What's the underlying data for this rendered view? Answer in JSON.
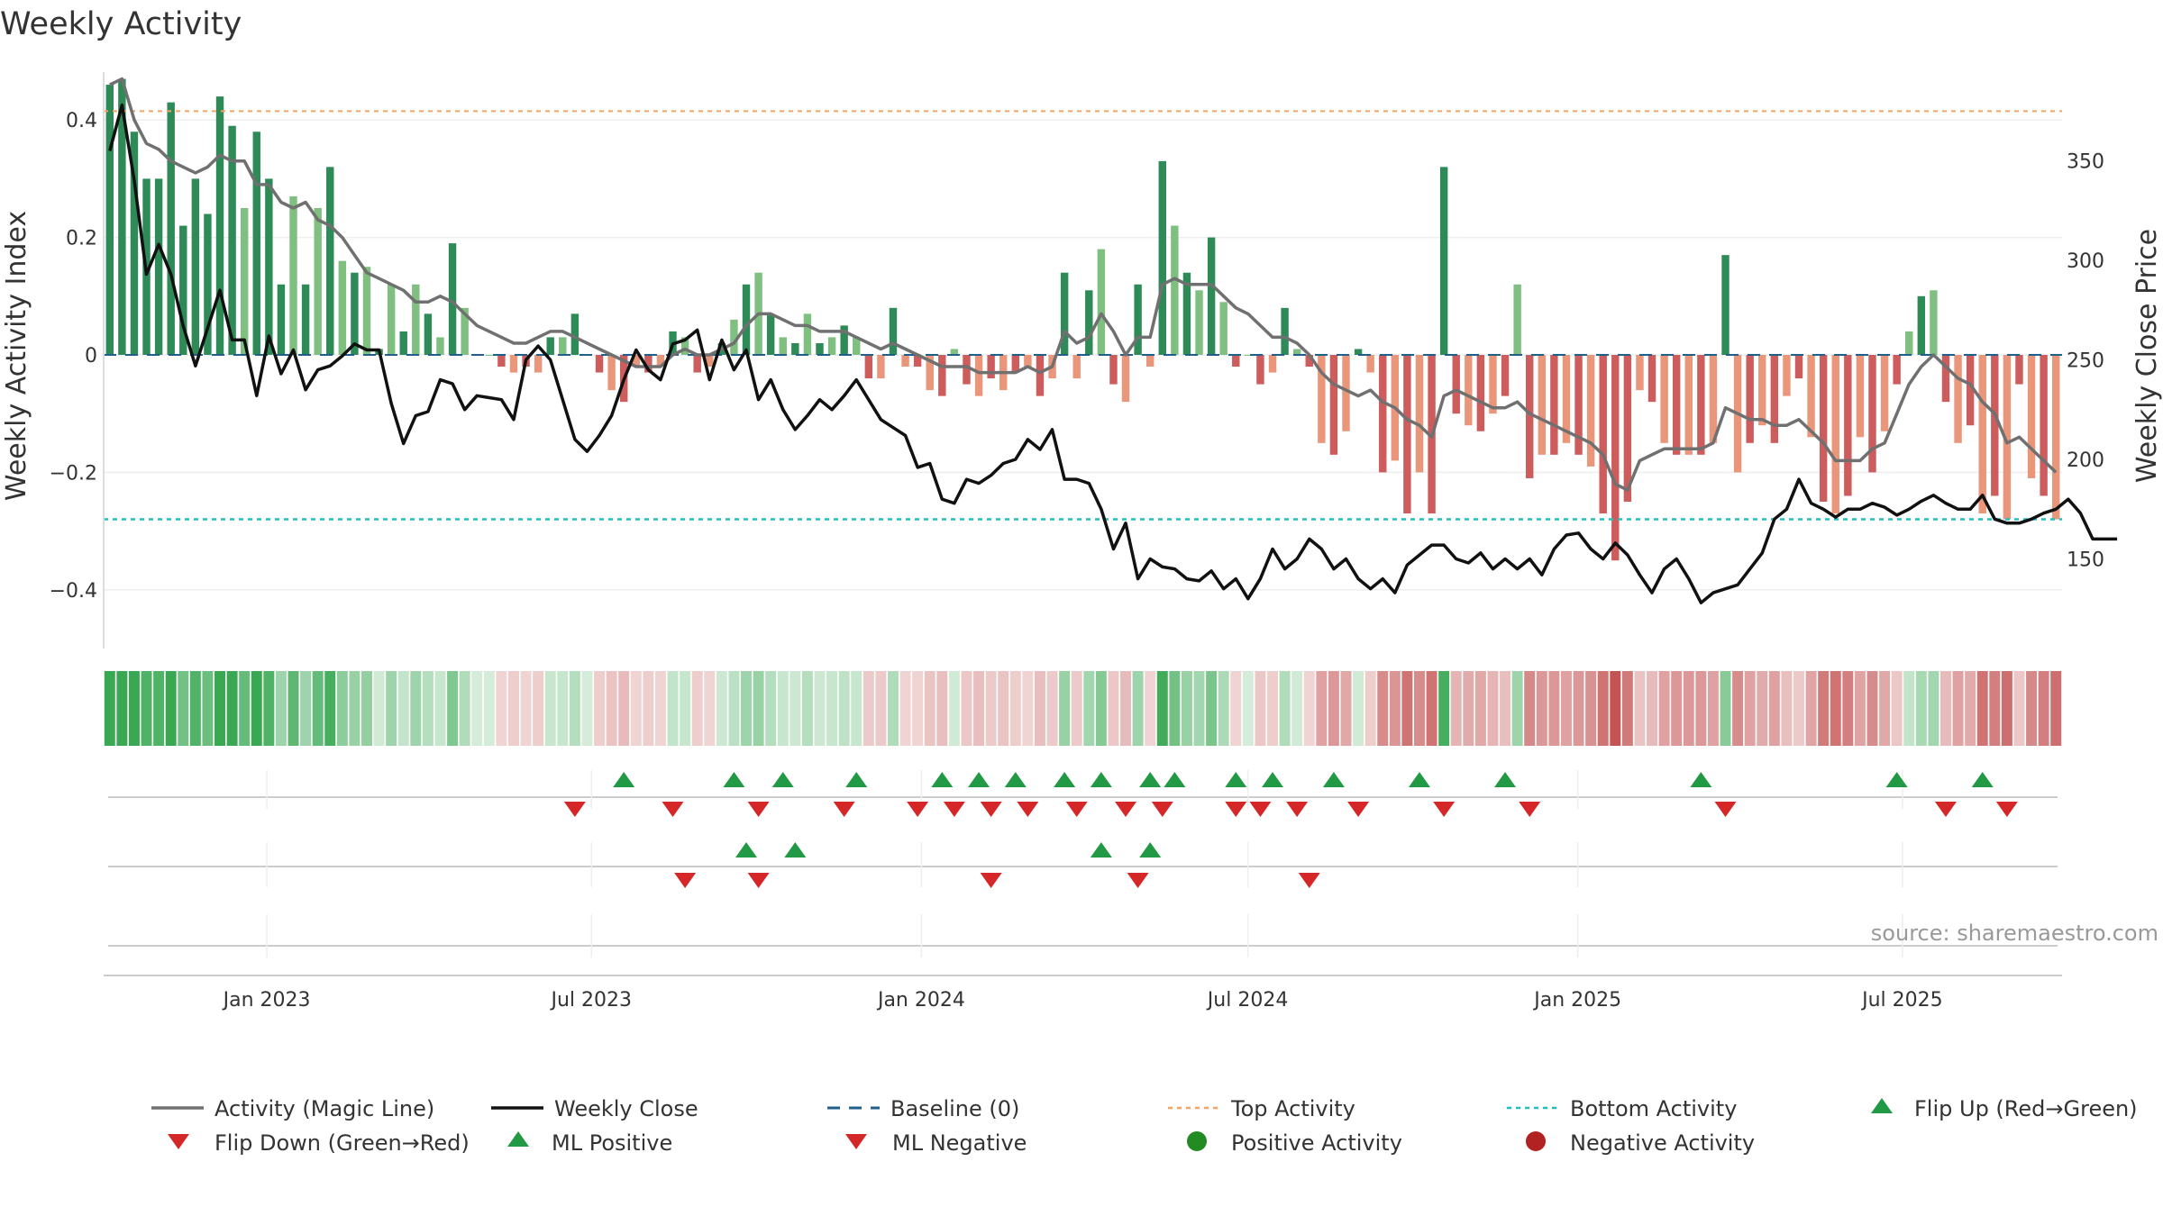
{
  "chart_data": {
    "type": "bar+line",
    "title": "Weekly Activity",
    "ylabel_left": "Weekly Activity Index",
    "ylabel_right": "Weekly Close Price",
    "ylim_left": [
      -0.5,
      0.5
    ],
    "ylim_right": [
      105,
      400
    ],
    "yticks_left": [
      0.4,
      0.2,
      0,
      -0.2,
      -0.4
    ],
    "ytick_labels_left": [
      "0.4",
      "0.2",
      "0",
      "−0.2",
      "−0.4"
    ],
    "yticks_right": [
      350,
      300,
      250,
      200,
      150
    ],
    "ytick_labels_right": [
      "350",
      "300",
      "250",
      "200",
      "150"
    ],
    "top_activity": 0.415,
    "bottom_activity": -0.28,
    "x_start": "2022-10-02",
    "x_end": "2025-09-28",
    "xticks": [
      "2023-01-01",
      "2023-07-01",
      "2024-01-01",
      "2024-07-01",
      "2025-01-01",
      "2025-07-01"
    ],
    "xtick_labels": [
      "Jan 2023",
      "Jul 2023",
      "Jan 2024",
      "Jul 2024",
      "Jan 2025",
      "Jul 2025"
    ],
    "source": "source: sharemaestro.com",
    "activity": [
      0.46,
      0.47,
      0.38,
      0.3,
      0.3,
      0.43,
      0.22,
      0.3,
      0.24,
      0.44,
      0.39,
      0.25,
      0.38,
      0.3,
      0.12,
      0.27,
      0.12,
      0.25,
      0.32,
      0.16,
      0.14,
      0.15,
      0.01,
      0.12,
      0.04,
      0.12,
      0.07,
      0.03,
      0.19,
      0.08,
      0.0,
      0.0,
      -0.02,
      -0.03,
      -0.02,
      -0.03,
      0.03,
      0.03,
      0.07,
      0.0,
      -0.03,
      -0.06,
      -0.08,
      -0.02,
      -0.03,
      -0.02,
      0.04,
      0.03,
      -0.03,
      -0.02,
      0.02,
      0.06,
      0.12,
      0.14,
      0.07,
      0.03,
      0.02,
      0.07,
      0.02,
      0.03,
      0.05,
      0.03,
      -0.04,
      -0.04,
      0.08,
      -0.02,
      -0.02,
      -0.06,
      -0.07,
      0.01,
      -0.05,
      -0.07,
      -0.04,
      -0.06,
      -0.03,
      -0.02,
      -0.07,
      -0.04,
      0.14,
      -0.04,
      0.11,
      0.18,
      -0.05,
      -0.08,
      0.12,
      -0.02,
      0.33,
      0.22,
      0.14,
      0.11,
      0.2,
      0.09,
      -0.02,
      0.0,
      -0.05,
      -0.03,
      0.08,
      0.01,
      -0.02,
      -0.15,
      -0.17,
      -0.13,
      0.01,
      -0.03,
      -0.2,
      -0.18,
      -0.27,
      -0.2,
      -0.27,
      0.32,
      -0.1,
      -0.12,
      -0.13,
      -0.1,
      -0.07,
      0.12,
      -0.21,
      -0.17,
      -0.17,
      -0.15,
      -0.17,
      -0.19,
      -0.27,
      -0.35,
      -0.25,
      -0.06,
      -0.08,
      -0.15,
      -0.17,
      -0.17,
      -0.17,
      -0.15,
      0.17,
      -0.2,
      -0.15,
      -0.12,
      -0.15,
      -0.07,
      -0.04,
      -0.14,
      -0.25,
      -0.27,
      -0.24,
      -0.14,
      -0.2,
      -0.13,
      -0.05,
      0.04,
      0.1,
      0.11,
      -0.08,
      -0.15,
      -0.12,
      -0.27,
      -0.24,
      -0.28,
      -0.05,
      -0.21,
      -0.24,
      -0.28
    ],
    "magic_line": [
      0.46,
      0.47,
      0.4,
      0.36,
      0.35,
      0.33,
      0.32,
      0.31,
      0.32,
      0.34,
      0.33,
      0.33,
      0.29,
      0.29,
      0.26,
      0.25,
      0.26,
      0.23,
      0.22,
      0.2,
      0.17,
      0.14,
      0.13,
      0.12,
      0.11,
      0.09,
      0.09,
      0.1,
      0.09,
      0.07,
      0.05,
      0.04,
      0.03,
      0.02,
      0.02,
      0.03,
      0.04,
      0.04,
      0.03,
      0.02,
      0.01,
      0.0,
      -0.01,
      -0.02,
      -0.02,
      -0.02,
      0.0,
      0.01,
      0.0,
      0.0,
      0.01,
      0.02,
      0.05,
      0.07,
      0.07,
      0.06,
      0.05,
      0.05,
      0.04,
      0.04,
      0.04,
      0.03,
      0.02,
      0.01,
      0.02,
      0.01,
      0.0,
      -0.01,
      -0.02,
      -0.02,
      -0.02,
      -0.03,
      -0.03,
      -0.03,
      -0.03,
      -0.02,
      -0.03,
      -0.02,
      0.04,
      0.02,
      0.03,
      0.07,
      0.04,
      0.0,
      0.03,
      0.03,
      0.12,
      0.13,
      0.12,
      0.12,
      0.12,
      0.1,
      0.08,
      0.07,
      0.05,
      0.03,
      0.03,
      0.02,
      0.0,
      -0.03,
      -0.05,
      -0.06,
      -0.07,
      -0.06,
      -0.08,
      -0.09,
      -0.11,
      -0.12,
      -0.14,
      -0.07,
      -0.06,
      -0.07,
      -0.08,
      -0.09,
      -0.09,
      -0.08,
      -0.1,
      -0.11,
      -0.12,
      -0.13,
      -0.14,
      -0.15,
      -0.17,
      -0.22,
      -0.23,
      -0.18,
      -0.17,
      -0.16,
      -0.16,
      -0.16,
      -0.16,
      -0.15,
      -0.09,
      -0.1,
      -0.11,
      -0.11,
      -0.12,
      -0.12,
      -0.11,
      -0.13,
      -0.15,
      -0.18,
      -0.18,
      -0.18,
      -0.16,
      -0.15,
      -0.1,
      -0.05,
      -0.02,
      0.0,
      -0.02,
      -0.04,
      -0.05,
      -0.08,
      -0.1,
      -0.15,
      -0.14,
      -0.16,
      -0.18,
      -0.2
    ],
    "weekly_close": [
      355,
      378,
      340,
      293,
      308,
      293,
      267,
      247,
      266,
      285,
      260,
      260,
      232,
      262,
      243,
      255,
      235,
      245,
      247,
      252,
      258,
      255,
      255,
      228,
      208,
      222,
      224,
      240,
      238,
      225,
      232,
      231,
      230,
      220,
      250,
      257,
      250,
      230,
      210,
      204,
      212,
      222,
      240,
      255,
      245,
      240,
      258,
      260,
      265,
      240,
      260,
      245,
      255,
      230,
      240,
      225,
      215,
      222,
      230,
      225,
      232,
      240,
      230,
      220,
      216,
      212,
      196,
      198,
      180,
      178,
      190,
      188,
      192,
      198,
      200,
      210,
      205,
      215,
      190,
      190,
      188,
      175,
      155,
      168,
      140,
      150,
      146,
      145,
      140,
      139,
      144,
      135,
      140,
      130,
      140,
      155,
      145,
      150,
      160,
      155,
      145,
      150,
      140,
      135,
      140,
      133,
      147,
      152,
      157,
      157,
      150,
      148,
      153,
      145,
      150,
      145,
      150,
      142,
      155,
      162,
      163,
      155,
      150,
      158,
      152,
      142,
      133,
      145,
      150,
      140,
      128,
      133,
      135,
      137,
      145,
      153,
      170,
      175,
      190,
      178,
      175,
      171,
      175,
      175,
      178,
      176,
      172,
      175,
      179,
      182,
      178,
      175,
      175,
      182,
      170,
      168,
      168,
      170,
      173,
      175,
      180,
      173,
      160,
      160,
      160
    ],
    "flip_up_weeks": [
      42,
      51,
      55,
      61,
      68,
      71,
      74,
      78,
      81,
      85,
      87,
      92,
      95,
      100,
      107,
      114,
      130,
      146,
      153
    ],
    "flip_down_weeks": [
      38,
      46,
      53,
      60,
      66,
      69,
      72,
      75,
      79,
      83,
      86,
      92,
      94,
      97,
      102,
      109,
      116,
      132,
      150,
      155
    ],
    "ml_positive_weeks": [
      52,
      56,
      81,
      85
    ],
    "ml_negative_weeks": [
      47,
      53,
      72,
      84,
      98
    ],
    "legend": {
      "row1": [
        "Activity (Magic Line)",
        "Weekly Close",
        "Baseline (0)",
        "Top Activity",
        "Bottom Activity",
        "Flip Up (Red→Green)"
      ],
      "row2": [
        "Flip Down (Green→Red)",
        "ML Positive",
        "ML Negative",
        "Positive Activity",
        "Negative Activity"
      ]
    },
    "colors": {
      "green_strong": "#2e8b57",
      "green_light": "#7fbf7f",
      "red_strong": "#cd5c5c",
      "red_light": "#e9967a",
      "magic_line": "#707070",
      "close_line": "#111111",
      "baseline": "#1f5f8b",
      "top": "#f4a460",
      "bottom": "#20c0c0",
      "marker_up": "#229944",
      "marker_down": "#d62728",
      "dot_pos": "#228b22",
      "dot_neg": "#b22222"
    }
  }
}
